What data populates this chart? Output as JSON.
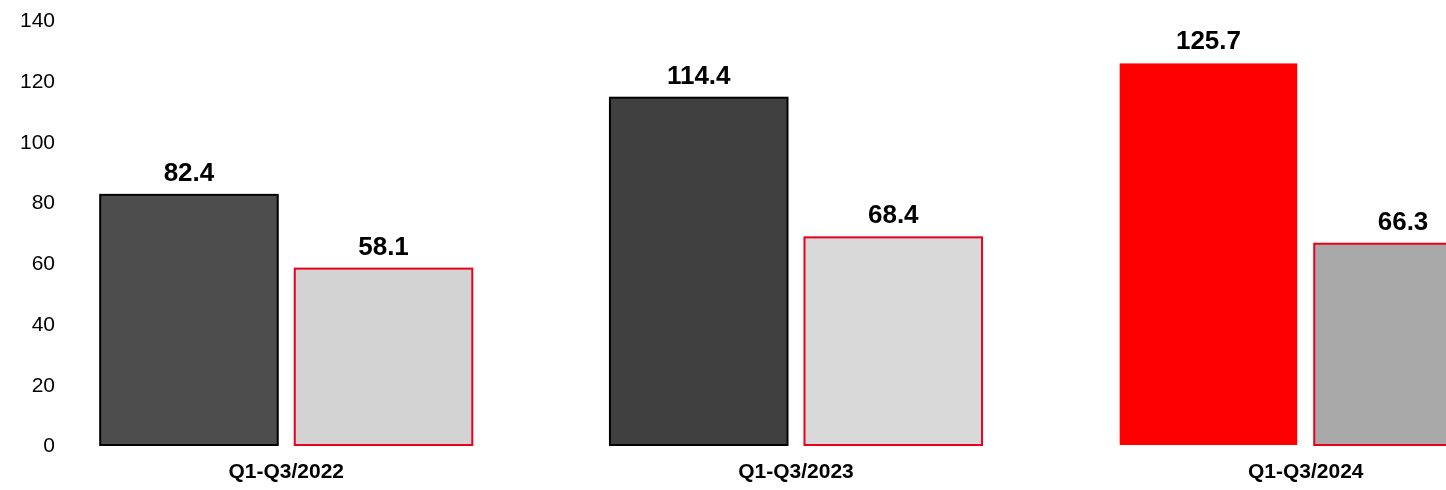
{
  "chart_data": {
    "type": "bar",
    "categories": [
      "Q1-Q3/2022",
      "Q1-Q3/2023",
      "Q1-Q3/2024"
    ],
    "series": [
      {
        "colors": [
          "#4d4d4d",
          "#404040",
          "#ff0000"
        ],
        "values": [
          82.4,
          114.4,
          125.7
        ]
      },
      {
        "colors": [
          "#d3d3d3",
          "#d9d9d9",
          "#a9a9a9"
        ],
        "values": [
          58.1,
          68.4,
          66.3
        ]
      }
    ],
    "ylim": [
      0,
      140
    ],
    "yticks": [
      0,
      20,
      40,
      60,
      80,
      100,
      120,
      140
    ],
    "data_labels": true
  }
}
